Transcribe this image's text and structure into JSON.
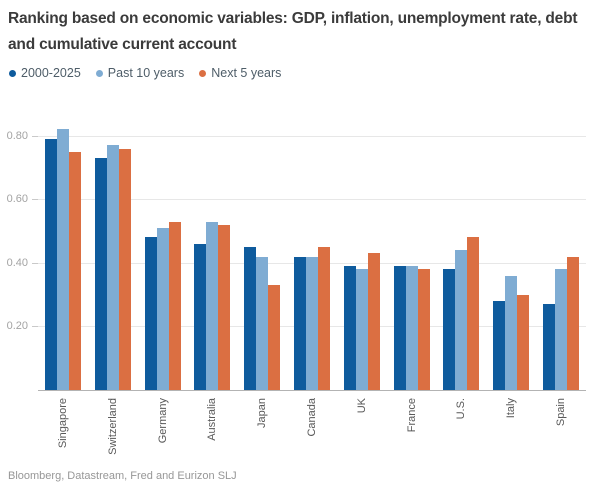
{
  "title": "Ranking based on economic variables: GDP, inflation, unemployment rate, debt and cumulative current account",
  "source": "Bloomberg, Datastream, Fred and Eurizon SLJ",
  "colors": {
    "series_dark_blue": "#0E5B9D",
    "series_light_blue": "#7FACD3",
    "series_orange": "#DB6F42",
    "title_text": "#3b3b3b",
    "axis_label": "#a3a3a3",
    "gridline": "#e7e7e7"
  },
  "chart_data": {
    "type": "bar",
    "title": "Ranking based on economic variables: GDP, inflation, unemployment rate, debt and cumulative current account",
    "categories": [
      "Singapore",
      "Switzerland",
      "Germany",
      "Australia",
      "Japan",
      "Canada",
      "UK",
      "France",
      "U.S.",
      "Italy",
      "Spain"
    ],
    "series": [
      {
        "name": "2000-2025",
        "color": "#0E5B9D",
        "values": [
          0.79,
          0.73,
          0.48,
          0.46,
          0.45,
          0.42,
          0.39,
          0.39,
          0.38,
          0.28,
          0.27
        ]
      },
      {
        "name": "Past 10 years",
        "color": "#7FACD3",
        "values": [
          0.82,
          0.77,
          0.51,
          0.53,
          0.42,
          0.42,
          0.38,
          0.39,
          0.44,
          0.36,
          0.38
        ]
      },
      {
        "name": "Next 5 years",
        "color": "#DB6F42",
        "values": [
          0.75,
          0.76,
          0.53,
          0.52,
          0.33,
          0.45,
          0.43,
          0.38,
          0.48,
          0.3,
          0.42
        ]
      }
    ],
    "xlabel": "",
    "ylabel": "",
    "yticks": [
      0.2,
      0.4,
      0.6,
      0.8
    ],
    "ytick_labels": [
      "0.20",
      "0.40",
      "0.60",
      "0.80"
    ],
    "ylim": [
      0,
      0.9
    ],
    "grid": true,
    "legend_position": "top-left",
    "xlabel_rotation": 90
  }
}
